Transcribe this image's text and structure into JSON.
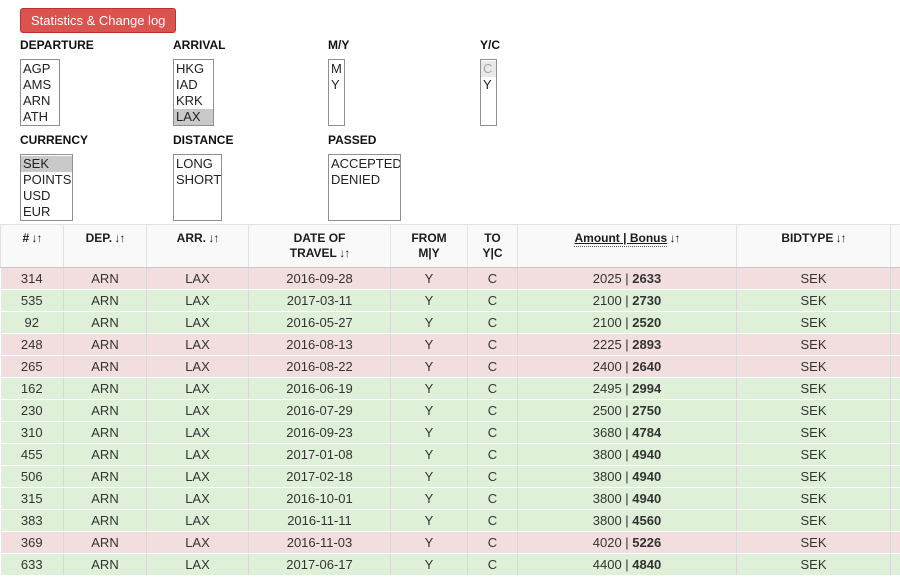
{
  "button_label": "Statistics & Change log",
  "icons": {
    "sort": "↓↑"
  },
  "colors": {
    "accent_red": "#d9534f",
    "row_accepted": "#dff0d8",
    "row_denied": "#f2dede",
    "selected_option": "#c9c9c9"
  },
  "filters": [
    {
      "key": "departure",
      "label": "DEPARTURE",
      "options": [
        {
          "text": "AGP"
        },
        {
          "text": "AMS"
        },
        {
          "text": "ARN"
        },
        {
          "text": "ATH"
        }
      ]
    },
    {
      "key": "arrival",
      "label": "ARRIVAL",
      "options": [
        {
          "text": "HKG"
        },
        {
          "text": "IAD"
        },
        {
          "text": "KRK"
        },
        {
          "text": "LAX",
          "state": "selected"
        }
      ]
    },
    {
      "key": "my",
      "label": "M/Y",
      "options": [
        {
          "text": "M"
        },
        {
          "text": "Y"
        }
      ]
    },
    {
      "key": "yc",
      "label": "Y/C",
      "options": [
        {
          "text": "C",
          "state": "muted"
        },
        {
          "text": "Y"
        }
      ]
    },
    {
      "key": "currency",
      "label": "CURRENCY",
      "options": [
        {
          "text": "SEK",
          "state": "selected"
        },
        {
          "text": "POINTS"
        },
        {
          "text": "USD"
        },
        {
          "text": "EUR"
        }
      ]
    },
    {
      "key": "distance",
      "label": "DISTANCE",
      "options": [
        {
          "text": "LONG"
        },
        {
          "text": "SHORT"
        }
      ]
    },
    {
      "key": "passed",
      "label": "PASSED",
      "options": [
        {
          "text": "ACCEPTED"
        },
        {
          "text": "DENIED"
        }
      ]
    }
  ],
  "table": {
    "columns": [
      {
        "key": "id",
        "lines": [
          "#"
        ],
        "sort": true
      },
      {
        "key": "dep",
        "lines": [
          "DEP."
        ],
        "sort": true
      },
      {
        "key": "arr",
        "lines": [
          "ARR."
        ],
        "sort": true
      },
      {
        "key": "date",
        "lines": [
          "DATE OF",
          "TRAVEL"
        ],
        "sort": true
      },
      {
        "key": "from",
        "lines": [
          "FROM",
          "M|Y"
        ],
        "sort": false
      },
      {
        "key": "to",
        "lines": [
          "TO",
          "Y|C"
        ],
        "sort": false
      },
      {
        "key": "amount",
        "lines": [
          "Amount | Bonus"
        ],
        "sort": true,
        "underline": true
      },
      {
        "key": "bidtype",
        "lines": [
          "BIDTYPE"
        ],
        "sort": true
      },
      {
        "key": "extra",
        "lines": [],
        "sort": false
      }
    ],
    "amount_separator": " | ",
    "rows": [
      {
        "id": "314",
        "dep": "ARN",
        "arr": "LAX",
        "date": "2016-09-28",
        "from": "Y",
        "to": "C",
        "amount": "2025",
        "bonus": "2633",
        "bidtype": "SEK",
        "status": "denied"
      },
      {
        "id": "535",
        "dep": "ARN",
        "arr": "LAX",
        "date": "2017-03-11",
        "from": "Y",
        "to": "C",
        "amount": "2100",
        "bonus": "2730",
        "bidtype": "SEK",
        "status": "accepted"
      },
      {
        "id": "92",
        "dep": "ARN",
        "arr": "LAX",
        "date": "2016-05-27",
        "from": "Y",
        "to": "C",
        "amount": "2100",
        "bonus": "2520",
        "bidtype": "SEK",
        "status": "accepted"
      },
      {
        "id": "248",
        "dep": "ARN",
        "arr": "LAX",
        "date": "2016-08-13",
        "from": "Y",
        "to": "C",
        "amount": "2225",
        "bonus": "2893",
        "bidtype": "SEK",
        "status": "denied"
      },
      {
        "id": "265",
        "dep": "ARN",
        "arr": "LAX",
        "date": "2016-08-22",
        "from": "Y",
        "to": "C",
        "amount": "2400",
        "bonus": "2640",
        "bidtype": "SEK",
        "status": "denied"
      },
      {
        "id": "162",
        "dep": "ARN",
        "arr": "LAX",
        "date": "2016-06-19",
        "from": "Y",
        "to": "C",
        "amount": "2495",
        "bonus": "2994",
        "bidtype": "SEK",
        "status": "accepted"
      },
      {
        "id": "230",
        "dep": "ARN",
        "arr": "LAX",
        "date": "2016-07-29",
        "from": "Y",
        "to": "C",
        "amount": "2500",
        "bonus": "2750",
        "bidtype": "SEK",
        "status": "accepted"
      },
      {
        "id": "310",
        "dep": "ARN",
        "arr": "LAX",
        "date": "2016-09-23",
        "from": "Y",
        "to": "C",
        "amount": "3680",
        "bonus": "4784",
        "bidtype": "SEK",
        "status": "accepted"
      },
      {
        "id": "455",
        "dep": "ARN",
        "arr": "LAX",
        "date": "2017-01-08",
        "from": "Y",
        "to": "C",
        "amount": "3800",
        "bonus": "4940",
        "bidtype": "SEK",
        "status": "accepted"
      },
      {
        "id": "506",
        "dep": "ARN",
        "arr": "LAX",
        "date": "2017-02-18",
        "from": "Y",
        "to": "C",
        "amount": "3800",
        "bonus": "4940",
        "bidtype": "SEK",
        "status": "accepted"
      },
      {
        "id": "315",
        "dep": "ARN",
        "arr": "LAX",
        "date": "2016-10-01",
        "from": "Y",
        "to": "C",
        "amount": "3800",
        "bonus": "4940",
        "bidtype": "SEK",
        "status": "accepted"
      },
      {
        "id": "383",
        "dep": "ARN",
        "arr": "LAX",
        "date": "2016-11-11",
        "from": "Y",
        "to": "C",
        "amount": "3800",
        "bonus": "4560",
        "bidtype": "SEK",
        "status": "accepted"
      },
      {
        "id": "369",
        "dep": "ARN",
        "arr": "LAX",
        "date": "2016-11-03",
        "from": "Y",
        "to": "C",
        "amount": "4020",
        "bonus": "5226",
        "bidtype": "SEK",
        "status": "denied"
      },
      {
        "id": "633",
        "dep": "ARN",
        "arr": "LAX",
        "date": "2017-06-17",
        "from": "Y",
        "to": "C",
        "amount": "4400",
        "bonus": "4840",
        "bidtype": "SEK",
        "status": "accepted"
      }
    ]
  }
}
